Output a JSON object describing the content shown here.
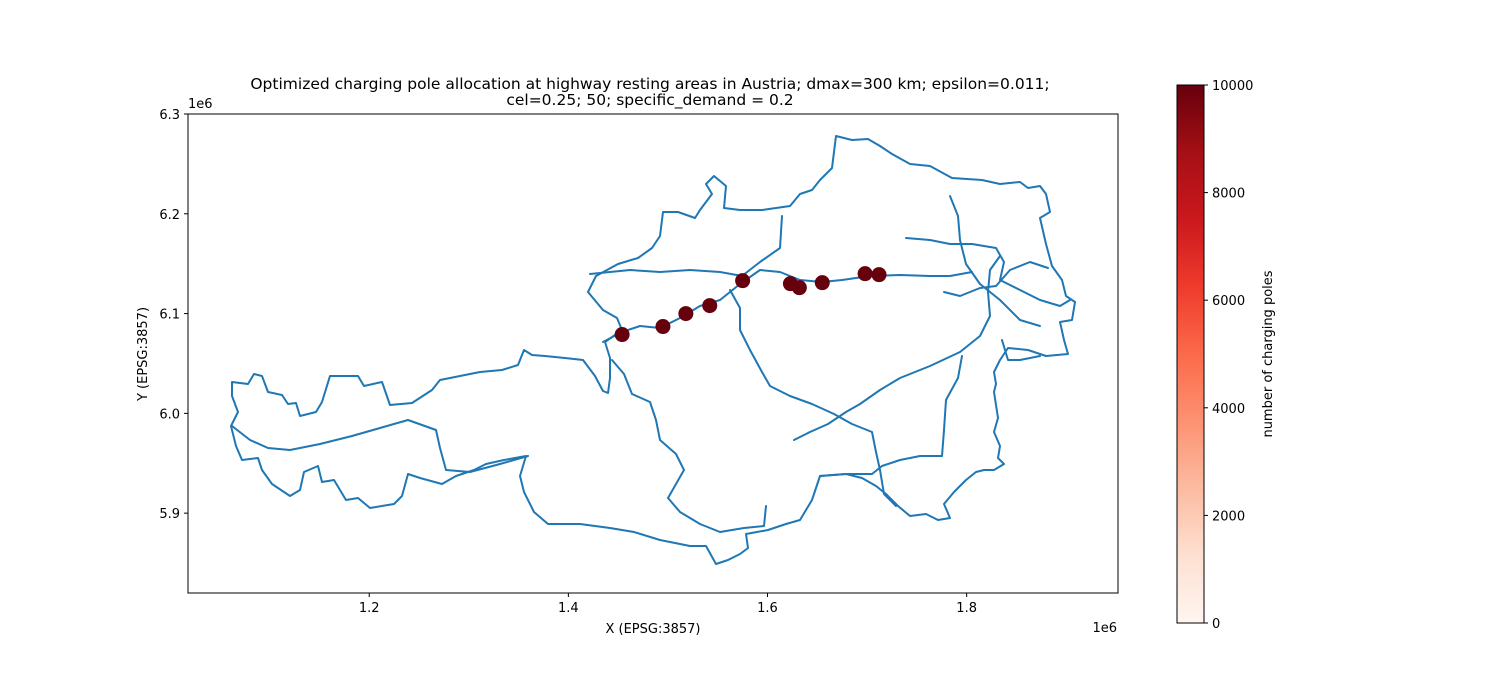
{
  "chart_data": {
    "type": "scatter",
    "title": "Optimized charging pole allocation at highway resting areas in Austria; dmax=300 km; epsilon=0.011;",
    "subtitle": "cel=0.25; 50; specific_demand = 0.2",
    "xlabel": "X (EPSG:3857)",
    "ylabel": "Y (EPSG:3857)",
    "x_offset_label": "1e6",
    "y_offset_label": "1e6",
    "xlim": [
      1.018,
      1.952
    ],
    "ylim": [
      5.82,
      6.3
    ],
    "x_ticks": [
      {
        "value": 1.2,
        "label": "1.2"
      },
      {
        "value": 1.4,
        "label": "1.4"
      },
      {
        "value": 1.6,
        "label": "1.6"
      },
      {
        "value": 1.8,
        "label": "1.8"
      }
    ],
    "y_ticks": [
      {
        "value": 5.9,
        "label": "5.9"
      },
      {
        "value": 6.0,
        "label": "6.0"
      },
      {
        "value": 6.1,
        "label": "6.1"
      },
      {
        "value": 6.2,
        "label": "6.2"
      },
      {
        "value": 6.3,
        "label": "6.3"
      }
    ],
    "grid": false,
    "points": [
      {
        "x": 1.454,
        "y": 6.079,
        "value": 10000
      },
      {
        "x": 1.495,
        "y": 6.087,
        "value": 10000
      },
      {
        "x": 1.518,
        "y": 6.1,
        "value": 10000
      },
      {
        "x": 1.542,
        "y": 6.108,
        "value": 10000
      },
      {
        "x": 1.575,
        "y": 6.133,
        "value": 10000
      },
      {
        "x": 1.623,
        "y": 6.13,
        "value": 10000
      },
      {
        "x": 1.632,
        "y": 6.126,
        "value": 10000
      },
      {
        "x": 1.655,
        "y": 6.131,
        "value": 10000
      },
      {
        "x": 1.698,
        "y": 6.14,
        "value": 10000
      },
      {
        "x": 1.712,
        "y": 6.139,
        "value": 10000
      }
    ],
    "colorbar": {
      "label": "number of charging poles",
      "min": 0,
      "max": 10000,
      "ticks": [
        {
          "value": 0,
          "label": "0"
        },
        {
          "value": 2000,
          "label": "2000"
        },
        {
          "value": 4000,
          "label": "4000"
        },
        {
          "value": 6000,
          "label": "6000"
        },
        {
          "value": 8000,
          "label": "8000"
        },
        {
          "value": 10000,
          "label": "10000"
        }
      ],
      "colormap": "Reds"
    },
    "colors": {
      "highway_line": "#1f77b4",
      "marker": "#67000d"
    }
  }
}
